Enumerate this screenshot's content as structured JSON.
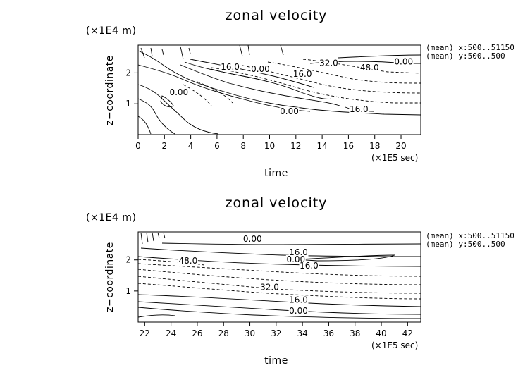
{
  "chart_data": [
    {
      "type": "contour",
      "title": "zonal velocity",
      "xlabel": "time",
      "ylabel": "z−coordinate",
      "x_unit": "(×1E5 sec)",
      "y_unit": "(×1E4 m)",
      "xlim": [
        0,
        21.5
      ],
      "ylim": [
        0,
        2.9
      ],
      "x_ticks": [
        0,
        2,
        4,
        6,
        8,
        10,
        12,
        14,
        16,
        18,
        20
      ],
      "y_ticks": [
        1,
        2
      ],
      "info_lines": [
        "(mean) x:500..51150",
        "(mean) y:500..500"
      ],
      "contour_labels": [
        {
          "text": "16.0",
          "x": 7.0,
          "y": 2.12
        },
        {
          "text": "0.00",
          "x": 9.3,
          "y": 2.05
        },
        {
          "text": "32.0",
          "x": 14.5,
          "y": 2.25
        },
        {
          "text": "48.0",
          "x": 17.6,
          "y": 2.1
        },
        {
          "text": "0.00",
          "x": 20.2,
          "y": 2.3
        },
        {
          "text": "16.0",
          "x": 12.5,
          "y": 1.9
        },
        {
          "text": "0.00",
          "x": 3.1,
          "y": 1.3
        },
        {
          "text": "0.00",
          "x": 11.5,
          "y": 0.68
        },
        {
          "text": "16.0",
          "x": 16.8,
          "y": 0.75
        }
      ]
    },
    {
      "type": "contour",
      "title": "zonal velocity",
      "xlabel": "time",
      "ylabel": "z−coordinate",
      "x_unit": "(×1E5 sec)",
      "y_unit": "(×1E4 m)",
      "xlim": [
        21.5,
        43
      ],
      "ylim": [
        0,
        2.9
      ],
      "x_ticks": [
        22,
        24,
        26,
        28,
        30,
        32,
        34,
        36,
        38,
        40,
        42
      ],
      "y_ticks": [
        1,
        2
      ],
      "info_lines": [
        "(mean) x:500..51150",
        "(mean) y:500..500"
      ],
      "contour_labels": [
        {
          "text": "0.00",
          "x": 30.2,
          "y": 2.6
        },
        {
          "text": "16.0",
          "x": 33.7,
          "y": 2.17
        },
        {
          "text": "0.00",
          "x": 33.5,
          "y": 1.95
        },
        {
          "text": "16.0",
          "x": 34.5,
          "y": 1.75
        },
        {
          "text": "48.0",
          "x": 25.3,
          "y": 1.9
        },
        {
          "text": "32.0",
          "x": 31.5,
          "y": 1.05
        },
        {
          "text": "16.0",
          "x": 33.7,
          "y": 0.65
        },
        {
          "text": "0.00",
          "x": 33.7,
          "y": 0.3
        }
      ]
    }
  ]
}
